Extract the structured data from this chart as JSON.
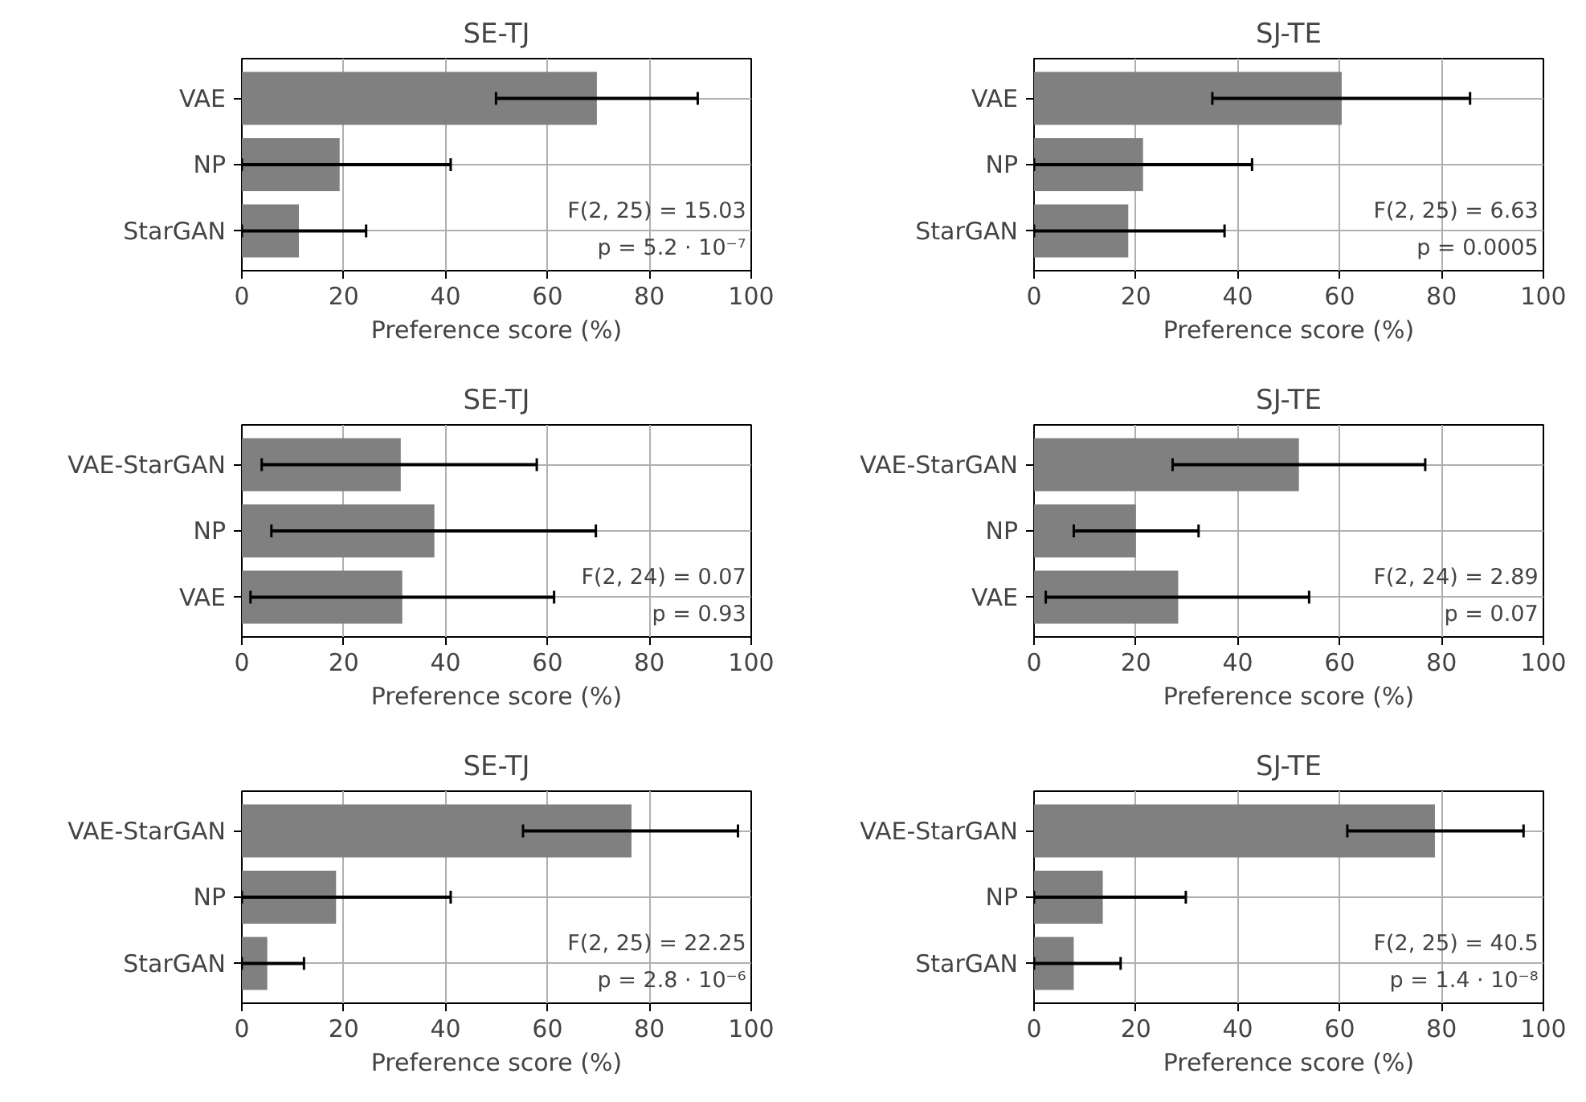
{
  "chart_data": [
    {
      "type": "bar",
      "orientation": "horizontal",
      "title": "SE-TJ",
      "xlabel": "Preference score (%)",
      "categories": [
        "VAE",
        "NP",
        "StarGAN"
      ],
      "values": [
        69.7,
        19.2,
        11.2
      ],
      "errors": [
        [
          49.9,
          89.5
        ],
        [
          0,
          41
        ],
        [
          0,
          24.4
        ]
      ],
      "color": "#808080",
      "xlim": [
        0,
        100
      ],
      "xticks": [
        0,
        20,
        40,
        60,
        80,
        100
      ],
      "grid": true,
      "annotations": [
        "F(2, 25) = 15.03",
        "p = 5.2 · 10⁻⁷"
      ]
    },
    {
      "type": "bar",
      "orientation": "horizontal",
      "title": "SJ-TE",
      "xlabel": "Preference score (%)",
      "categories": [
        "VAE",
        "NP",
        "StarGAN"
      ],
      "values": [
        60.4,
        21.4,
        18.5
      ],
      "errors": [
        [
          35,
          85.6
        ],
        [
          0,
          42.8
        ],
        [
          0,
          37.4
        ]
      ],
      "color": "#808080",
      "xlim": [
        0,
        100
      ],
      "xticks": [
        0,
        20,
        40,
        60,
        80,
        100
      ],
      "grid": true,
      "annotations": [
        "F(2, 25) = 6.63",
        "p = 0.0005"
      ]
    },
    {
      "type": "bar",
      "orientation": "horizontal",
      "title": "SE-TJ",
      "xlabel": "Preference score (%)",
      "categories": [
        "VAE-StarGAN",
        "NP",
        "VAE"
      ],
      "values": [
        31.2,
        37.8,
        31.5
      ],
      "errors": [
        [
          3.9,
          57.9
        ],
        [
          5.8,
          69.5
        ],
        [
          1.7,
          61.3
        ]
      ],
      "color": "#808080",
      "xlim": [
        0,
        100
      ],
      "xticks": [
        0,
        20,
        40,
        60,
        80,
        100
      ],
      "grid": true,
      "annotations": [
        "F(2, 24) = 0.07",
        "p = 0.93"
      ]
    },
    {
      "type": "bar",
      "orientation": "horizontal",
      "title": "SJ-TE",
      "xlabel": "Preference score (%)",
      "categories": [
        "VAE-StarGAN",
        "NP",
        "VAE"
      ],
      "values": [
        52,
        20,
        28.3
      ],
      "errors": [
        [
          27.2,
          76.8
        ],
        [
          7.8,
          32.3
        ],
        [
          2.3,
          54
        ]
      ],
      "color": "#808080",
      "xlim": [
        0,
        100
      ],
      "xticks": [
        0,
        20,
        40,
        60,
        80,
        100
      ],
      "grid": true,
      "annotations": [
        "F(2, 24) = 2.89",
        "p = 0.07"
      ]
    },
    {
      "type": "bar",
      "orientation": "horizontal",
      "title": "SE-TJ",
      "xlabel": "Preference score (%)",
      "categories": [
        "VAE-StarGAN",
        "NP",
        "StarGAN"
      ],
      "values": [
        76.5,
        18.5,
        5
      ],
      "errors": [
        [
          55.2,
          97.4
        ],
        [
          0,
          41
        ],
        [
          0,
          12.2
        ]
      ],
      "color": "#808080",
      "xlim": [
        0,
        100
      ],
      "xticks": [
        0,
        20,
        40,
        60,
        80,
        100
      ],
      "grid": true,
      "annotations": [
        "F(2, 25) = 22.25",
        "p = 2.8 · 10⁻⁶"
      ]
    },
    {
      "type": "bar",
      "orientation": "horizontal",
      "title": "SJ-TE",
      "xlabel": "Preference score (%)",
      "categories": [
        "VAE-StarGAN",
        "NP",
        "StarGAN"
      ],
      "values": [
        78.7,
        13.5,
        7.8
      ],
      "errors": [
        [
          61.5,
          96.1
        ],
        [
          0,
          29.8
        ],
        [
          0,
          17
        ]
      ],
      "color": "#808080",
      "xlim": [
        0,
        100
      ],
      "xticks": [
        0,
        20,
        40,
        60,
        80,
        100
      ],
      "grid": true,
      "annotations": [
        "F(2, 25) = 40.5",
        "p = 1.4 · 10⁻⁸"
      ]
    }
  ]
}
